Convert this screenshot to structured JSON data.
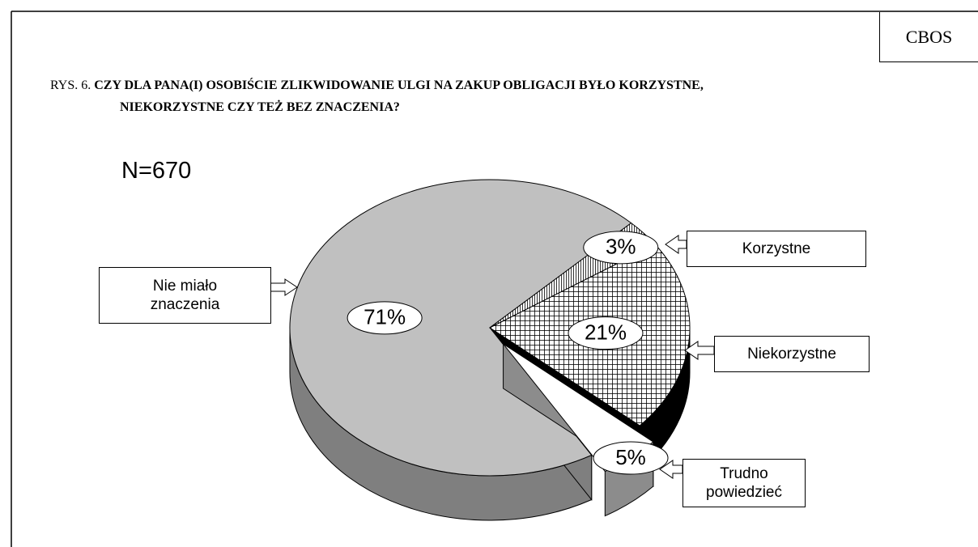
{
  "header": "CBOS",
  "chart_data": {
    "type": "pie",
    "figure_label": "RYS. 6.",
    "title": "CZY DLA PANA(I) OSOBIŚCIE ZLIKWIDOWANIE ULGI NA ZAKUP OBLIGACJI BYŁO KORZYSTNE, NIEKORZYSTNE CZY TEŻ BEZ ZNACZENIA?",
    "annotation": "N=670",
    "categories": [
      "Nie miało znaczenia",
      "Korzystne",
      "Niekorzystne",
      "Trudno powiedzieć"
    ],
    "values": [
      71,
      3,
      21,
      5
    ],
    "value_labels": [
      "71%",
      "3%",
      "21%",
      "5%"
    ],
    "colors": [
      "#c0c0c0",
      "#ffffff",
      "#ffffff",
      "#ffffff"
    ]
  }
}
